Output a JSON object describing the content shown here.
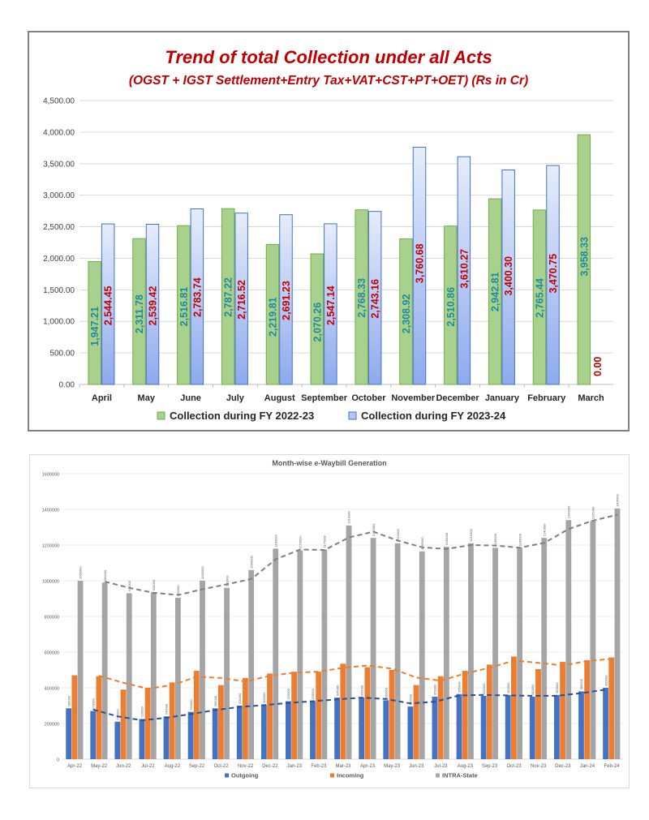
{
  "chart_data": [
    {
      "type": "bar",
      "title": "Trend of total Collection under all Acts",
      "subtitle": "(OGST + IGST Settlement+Entry Tax+VAT+CST+PT+OET) (Rs in Cr)",
      "xlabel": "",
      "ylabel": "",
      "ylim": [
        0,
        4500
      ],
      "yticks": [
        0,
        500,
        1000,
        1500,
        2000,
        2500,
        3000,
        3500,
        4000,
        4500
      ],
      "ytick_labels": [
        "0.00",
        "500.00",
        "1,000.00",
        "1,500.00",
        "2,000.00",
        "2,500.00",
        "3,000.00",
        "3,500.00",
        "4,000.00",
        "4,500.00"
      ],
      "grid": true,
      "legend_position": "bottom",
      "categories": [
        "April",
        "May",
        "June",
        "July",
        "August",
        "September",
        "October",
        "November",
        "December",
        "January",
        "February",
        "March"
      ],
      "series": [
        {
          "name": "Collection during FY 2022-23",
          "color": "#a9d18e",
          "border": "#70ad47",
          "label_color": "#1f8a9a",
          "values": [
            1947.21,
            2311.78,
            2516.81,
            2787.22,
            2219.81,
            2070.26,
            2768.33,
            2308.92,
            2510.86,
            2942.81,
            2765.44,
            3958.33
          ],
          "labels": [
            "1,947.21",
            "2,311.78",
            "2,516.81",
            "2,787.22",
            "2,219.81",
            "2,070.26",
            "2,768.33",
            "2,308.92",
            "2,510.86",
            "2,942.81",
            "2,765.44",
            "3,958.33"
          ]
        },
        {
          "name": "Collection during  FY 2023-24",
          "color": "#b4c7f0",
          "border": "#4472c4",
          "label_color": "#c00000",
          "values": [
            2544.45,
            2539.42,
            2783.74,
            2716.52,
            2691.23,
            2547.14,
            2743.16,
            3760.68,
            3610.27,
            3400.3,
            3470.75,
            0.0
          ],
          "labels": [
            "2,544.45",
            "2,539.42",
            "2,783.74",
            "2,716.52",
            "2,691.23",
            "2,547.14",
            "2,743.16",
            "3,760.68",
            "3,610.27",
            "3,400.30",
            "3,470.75",
            "0.00"
          ]
        }
      ],
      "title_color": "#c00000"
    },
    {
      "type": "bar",
      "title": "Month-wise e-Waybill Generation",
      "xlabel": "",
      "ylabel": "",
      "ylim": [
        0,
        1600000
      ],
      "yticks": [
        0,
        200000,
        400000,
        600000,
        800000,
        1000000,
        1200000,
        1400000,
        1600000
      ],
      "ytick_labels": [
        "0",
        "200000",
        "400000",
        "600000",
        "800000",
        "1000000",
        "1200000",
        "1400000",
        "1600000"
      ],
      "grid": true,
      "legend_position": "bottom",
      "trendlines": "dashed 2-period moving average per series",
      "categories": [
        "Apr-22",
        "May-22",
        "Jun-22",
        "Jul-22",
        "Aug-22",
        "Sep-22",
        "Oct-22",
        "Nov-22",
        "Dec-22",
        "Jan-23",
        "Feb-23",
        "Mar-23",
        "Apr-23",
        "May-23",
        "Jun-23",
        "Jul-23",
        "Aug-23",
        "Sep-23",
        "Oct-23",
        "Nov-23",
        "Dec-23",
        "Jan-24",
        "Feb-24"
      ],
      "series": [
        {
          "name": "Outgoing",
          "color": "#4472c4",
          "trend_color": "#2f4f8f",
          "values": [
            285000,
            270000,
            210000,
            225000,
            240000,
            265000,
            285000,
            300000,
            305000,
            325000,
            325000,
            345000,
            345000,
            330000,
            295000,
            350000,
            365000,
            355000,
            360000,
            350000,
            360000,
            380000,
            400000
          ]
        },
        {
          "name": "Incoming",
          "color": "#ed7d31",
          "trend_color": "#ed7d31",
          "values": [
            470000,
            465000,
            390000,
            400000,
            430000,
            495000,
            415000,
            455000,
            480000,
            490000,
            490000,
            535000,
            515000,
            500000,
            415000,
            465000,
            495000,
            530000,
            575000,
            505000,
            545000,
            555000,
            570000
          ]
        },
        {
          "name": "INTRA-State",
          "color": "#a5a5a5",
          "trend_color": "#7f7f7f",
          "values": [
            1000000,
            990000,
            930000,
            935000,
            905000,
            1000000,
            960000,
            1060000,
            1180000,
            1170000,
            1175000,
            1310000,
            1240000,
            1210000,
            1165000,
            1190000,
            1210000,
            1185000,
            1185000,
            1240000,
            1340000,
            1335000,
            1405000
          ]
        }
      ]
    }
  ]
}
